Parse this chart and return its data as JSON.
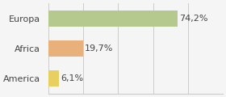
{
  "categories": [
    "Europa",
    "Africa",
    "America"
  ],
  "values": [
    74.2,
    19.7,
    6.1
  ],
  "labels": [
    "74,2%",
    "19,7%",
    "6,1%"
  ],
  "bar_colors": [
    "#b5c98e",
    "#e8b07a",
    "#e8d060"
  ],
  "background_color": "#f5f5f5",
  "xlim": [
    0,
    100
  ],
  "label_fontsize": 8.0,
  "tick_fontsize": 8.0
}
